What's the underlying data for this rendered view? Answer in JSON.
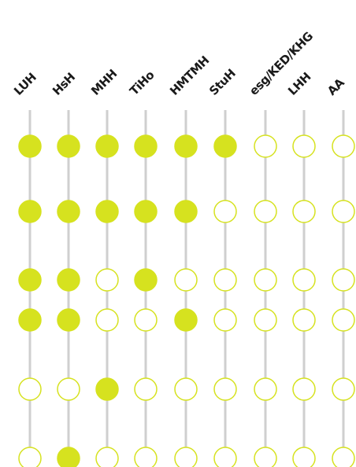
{
  "colors": {
    "filled": "#d6e21f",
    "empty_fill": "#ffffff",
    "stroke": "#d6e21f",
    "line": "#cfcfcf",
    "text": "#1a1a1a"
  },
  "columns": [
    {
      "label": "LUH"
    },
    {
      "label": "HsH"
    },
    {
      "label": "MHH"
    },
    {
      "label": "TiHo"
    },
    {
      "label": "HMTMH"
    },
    {
      "label": "StuH"
    },
    {
      "label": "esg/KED/KHG"
    },
    {
      "label": "LHH"
    },
    {
      "label": "AA"
    }
  ],
  "rows": [
    {
      "states": [
        1,
        1,
        1,
        1,
        1,
        1,
        0,
        0,
        0
      ]
    },
    {
      "states": [
        1,
        1,
        1,
        1,
        1,
        0,
        0,
        0,
        0
      ]
    },
    {
      "states": [
        1,
        1,
        0,
        1,
        0,
        0,
        0,
        0,
        0
      ]
    },
    {
      "states": [
        1,
        1,
        0,
        0,
        1,
        0,
        0,
        0,
        0
      ]
    },
    {
      "states": [
        0,
        0,
        1,
        0,
        0,
        0,
        0,
        0,
        0
      ]
    },
    {
      "states": [
        0,
        1,
        0,
        0,
        0,
        0,
        0,
        0,
        0
      ]
    }
  ]
}
